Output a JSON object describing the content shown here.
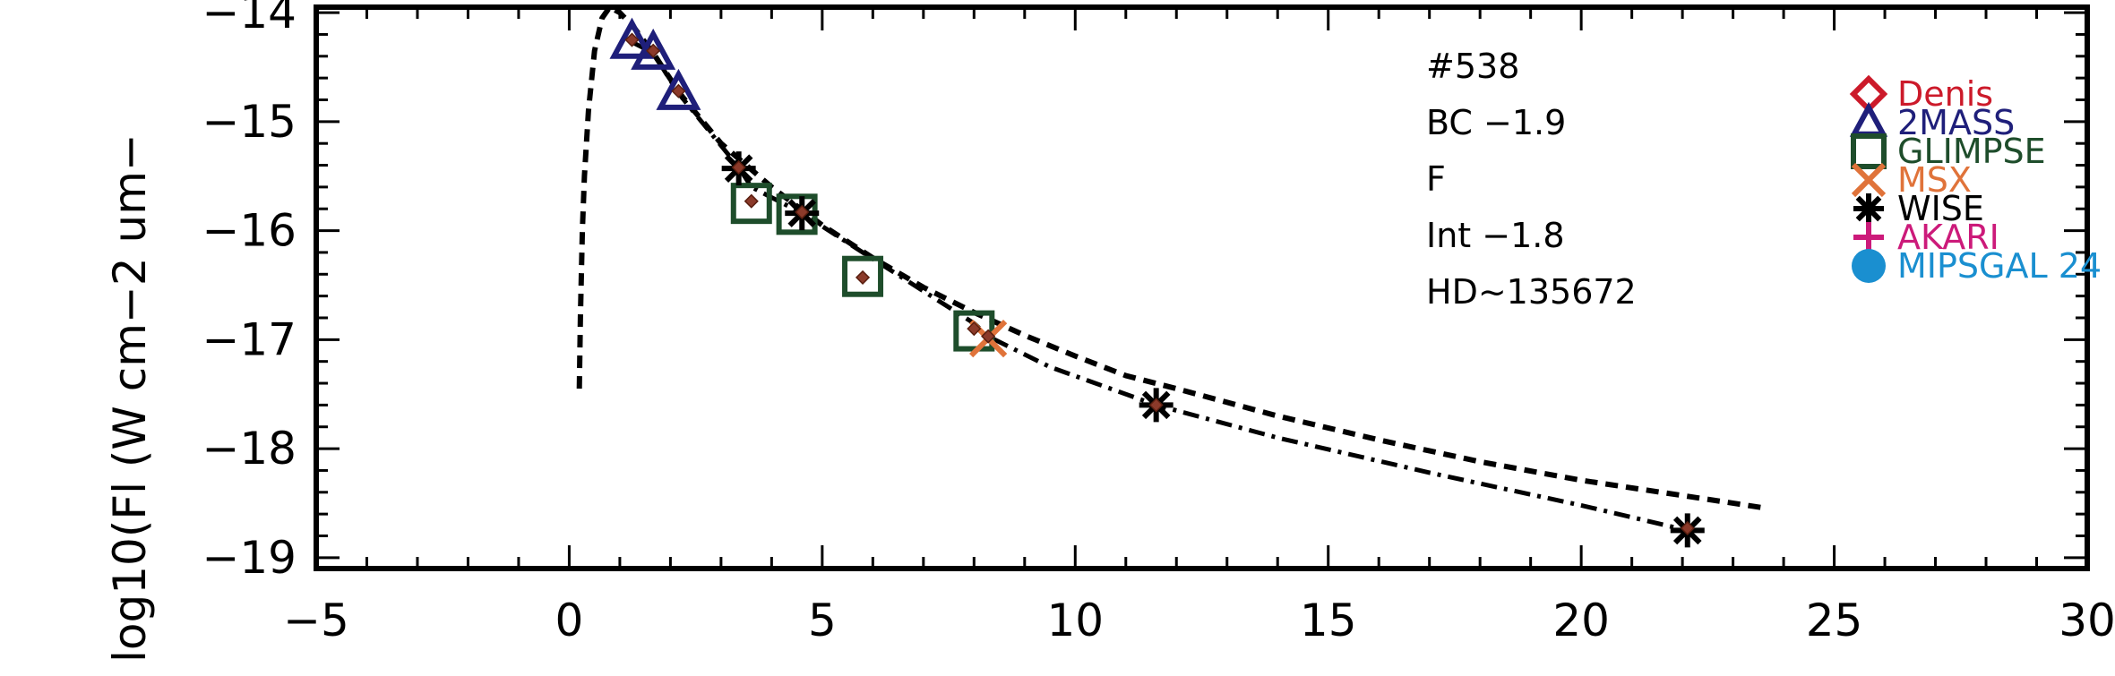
{
  "chart_data": {
    "type": "scatter",
    "title": "",
    "xlabel": "",
    "ylabel": "log10(Fl (W cm−2 um−",
    "xlim": [
      -5,
      30
    ],
    "ylim": [
      -19.1,
      -13.95
    ],
    "x_ticks": [
      {
        "value": -5,
        "label": "−5"
      },
      {
        "value": 0,
        "label": "0"
      },
      {
        "value": 5,
        "label": "5"
      },
      {
        "value": 10,
        "label": "10"
      },
      {
        "value": 15,
        "label": "15"
      },
      {
        "value": 20,
        "label": "20"
      },
      {
        "value": 25,
        "label": "25"
      },
      {
        "value": 30,
        "label": "30"
      }
    ],
    "y_ticks": [
      {
        "value": -14,
        "label": "−14"
      },
      {
        "value": -15,
        "label": "−15"
      },
      {
        "value": -16,
        "label": "−16"
      },
      {
        "value": -17,
        "label": "−17"
      },
      {
        "value": -18,
        "label": "−18"
      },
      {
        "value": -19,
        "label": "−19"
      }
    ],
    "annotations": [
      "#538",
      "BC −1.9",
      "F",
      "Int −1.8",
      "HD~135672"
    ],
    "legend_position": "right",
    "series": [
      {
        "name": "Denis",
        "marker": "diamond",
        "color": "#cc1a2a",
        "points": []
      },
      {
        "name": "2MASS",
        "marker": "triangle",
        "color": "#1f1f7a",
        "points": [
          [
            1.24,
            -14.27
          ],
          [
            1.66,
            -14.37
          ],
          [
            2.16,
            -14.74
          ]
        ]
      },
      {
        "name": "GLIMPSE",
        "marker": "square",
        "color": "#1e4d2b",
        "points": [
          [
            3.6,
            -15.75
          ],
          [
            4.5,
            -15.85
          ],
          [
            5.8,
            -16.42
          ],
          [
            8.0,
            -16.92
          ]
        ]
      },
      {
        "name": "MSX",
        "marker": "x",
        "color": "#e0733a",
        "points": [
          [
            8.28,
            -16.99
          ]
        ]
      },
      {
        "name": "WISE",
        "marker": "asterisk",
        "color": "#000000",
        "points": [
          [
            3.35,
            -15.43
          ],
          [
            4.6,
            -15.84
          ],
          [
            11.6,
            -17.6
          ],
          [
            22.1,
            -18.75
          ]
        ]
      },
      {
        "name": "AKARI",
        "marker": "plus",
        "color": "#cc1a7a",
        "points": []
      },
      {
        "name": "MIPSGAL 24",
        "marker": "circle",
        "color": "#1a8fd0",
        "points": []
      }
    ],
    "model_points": {
      "color": "#8b3a2a",
      "points": [
        [
          1.24,
          -14.25
        ],
        [
          1.66,
          -14.35
        ],
        [
          2.16,
          -14.72
        ],
        [
          3.35,
          -15.42
        ],
        [
          3.6,
          -15.73
        ],
        [
          4.6,
          -15.83
        ],
        [
          5.8,
          -16.43
        ],
        [
          8.0,
          -16.9
        ],
        [
          8.28,
          -16.97
        ],
        [
          11.6,
          -17.6
        ],
        [
          22.1,
          -18.73
        ]
      ]
    },
    "blackbody_curve": {
      "style": "dashed",
      "points": [
        [
          0.2,
          -17.45
        ],
        [
          0.22,
          -16.8
        ],
        [
          0.26,
          -16.0
        ],
        [
          0.3,
          -15.5
        ],
        [
          0.38,
          -14.9
        ],
        [
          0.5,
          -14.35
        ],
        [
          0.65,
          -14.05
        ],
        [
          0.8,
          -13.95
        ],
        [
          1.0,
          -14.0
        ],
        [
          1.3,
          -14.15
        ],
        [
          1.7,
          -14.4
        ],
        [
          2.2,
          -14.75
        ],
        [
          3.0,
          -15.2
        ],
        [
          4.0,
          -15.6
        ],
        [
          5.0,
          -15.95
        ],
        [
          6.0,
          -16.25
        ],
        [
          7.0,
          -16.52
        ],
        [
          8.0,
          -16.75
        ],
        [
          9.0,
          -16.96
        ],
        [
          10.0,
          -17.15
        ],
        [
          11.0,
          -17.33
        ],
        [
          12.0,
          -17.45
        ],
        [
          14.0,
          -17.7
        ],
        [
          16.0,
          -17.92
        ],
        [
          18.0,
          -18.12
        ],
        [
          20.0,
          -18.29
        ],
        [
          22.0,
          -18.43
        ],
        [
          23.7,
          -18.55
        ]
      ]
    },
    "fit_curve": {
      "style": "dash-dot",
      "points": [
        [
          1.24,
          -14.27
        ],
        [
          1.66,
          -14.37
        ],
        [
          2.16,
          -14.74
        ],
        [
          3.35,
          -15.42
        ],
        [
          3.6,
          -15.6
        ],
        [
          4.6,
          -15.84
        ],
        [
          5.8,
          -16.2
        ],
        [
          8.0,
          -16.85
        ],
        [
          8.28,
          -16.97
        ],
        [
          9.5,
          -17.25
        ],
        [
          11.6,
          -17.6
        ],
        [
          14.0,
          -17.9
        ],
        [
          17.0,
          -18.22
        ],
        [
          20.0,
          -18.52
        ],
        [
          22.1,
          -18.75
        ]
      ]
    }
  }
}
